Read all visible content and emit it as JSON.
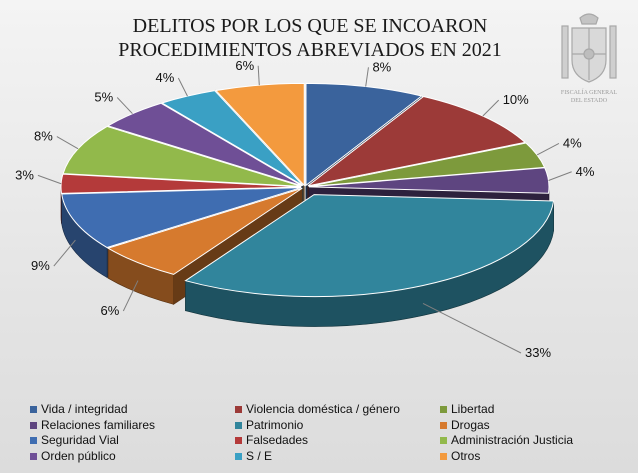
{
  "title_lines": [
    "DELITOS POR LOS QUE SE INCOARON",
    "PROCEDIMIENTOS ABREVIADOS EN 2021"
  ],
  "logo": {
    "caption_lines": [
      "FISCALÍA GENERAL",
      "DEL ESTADO"
    ],
    "icon": "coat-of-arms-icon"
  },
  "chart_data": {
    "type": "pie",
    "title": "DELITOS POR LOS QUE SE INCOARON PROCEDIMIENTOS ABREVIADOS EN 2021",
    "value_format": "percent",
    "legend_position": "bottom",
    "slices": [
      {
        "name": "Vida / integridad",
        "value": 8,
        "label": "8%",
        "color": "#3a639c"
      },
      {
        "name": "Violencia doméstica / género",
        "value": 10,
        "label": "10%",
        "color": "#9c3a38"
      },
      {
        "name": "Libertad",
        "value": 4,
        "label": "4%",
        "color": "#7d9a3c"
      },
      {
        "name": "Relaciones familiares",
        "value": 4,
        "label": "4%",
        "color": "#5e4580"
      },
      {
        "name": "Patrimonio",
        "value": 33,
        "label": "33%",
        "color": "#31859c"
      },
      {
        "name": "Drogas",
        "value": 6,
        "label": "6%",
        "color": "#d67a2e"
      },
      {
        "name": "Seguridad Vial",
        "value": 9,
        "label": "9%",
        "color": "#3f6db1"
      },
      {
        "name": "Falsedades",
        "value": 3,
        "label": "3%",
        "color": "#b43a3a"
      },
      {
        "name": "Administración Justicia",
        "value": 8,
        "label": "8%",
        "color": "#92b94b"
      },
      {
        "name": "Orden público",
        "value": 5,
        "label": "5%",
        "color": "#6f4f96"
      },
      {
        "name": "S / E",
        "value": 4,
        "label": "4%",
        "color": "#3aa0c4"
      },
      {
        "name": "Otros",
        "value": 6,
        "label": "6%",
        "color": "#f39a3e"
      }
    ]
  }
}
